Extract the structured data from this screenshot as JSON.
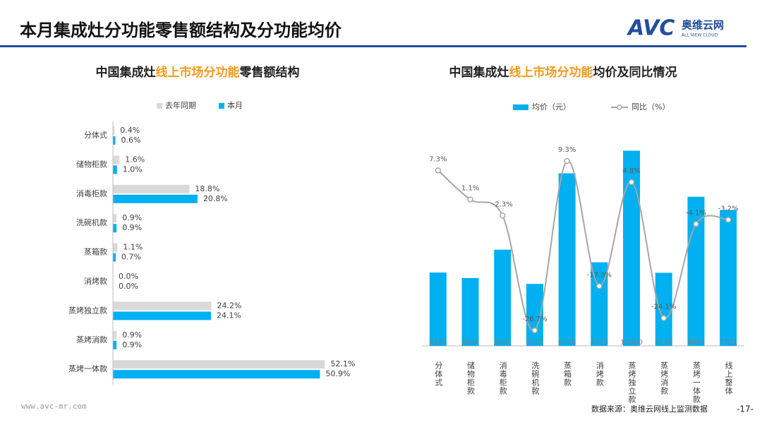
{
  "header": {
    "title": "本月集成灶分功能零售额结构及分功能均价",
    "logo": "AVC",
    "logo_cn": "奥维云网",
    "logo_en": "ALL VIEW CLOUD"
  },
  "footer": {
    "website": "www.avc-mr.com",
    "source": "数据来源：奥维云网线上监测数据",
    "page": "-17-"
  },
  "chart_data": [
    {
      "type": "hbar",
      "title": [
        {
          "text": "中国集成灶",
          "color": "#222222"
        },
        {
          "text": "线上市场分功能",
          "color": "#f39a1e"
        },
        {
          "text": "零售额结构",
          "color": "#222222"
        }
      ],
      "categories": [
        "分体式",
        "储物柜款",
        "消毒柜款",
        "洗碗机款",
        "蒸箱款",
        "消烤款",
        "蒸烤独立款",
        "蒸烤消款",
        "蒸烤一体款"
      ],
      "series": [
        {
          "name": "去年同期",
          "color": "#d9d9d9",
          "values": [
            0.4,
            1.6,
            18.8,
            0.9,
            1.1,
            0.0,
            24.2,
            0.9,
            52.1
          ],
          "value_labels": [
            "0.4%",
            "1.6%",
            "18.8%",
            "0.9%",
            "1.1%",
            "0.0%",
            "24.2%",
            "0.9%",
            "52.1%"
          ]
        },
        {
          "name": "本月",
          "color": "#00b0f0",
          "values": [
            0.6,
            1.0,
            20.8,
            0.9,
            0.7,
            0.0,
            24.1,
            0.9,
            50.9
          ],
          "value_labels": [
            "0.6%",
            "1.0%",
            "20.8%",
            "0.9%",
            "0.7%",
            "0.0%",
            "24.1%",
            "0.9%",
            "50.9%"
          ]
        }
      ],
      "xlim": [
        0,
        60
      ]
    },
    {
      "type": "bar_line",
      "title": [
        {
          "text": "中国集成灶",
          "color": "#222222"
        },
        {
          "text": "线上市场分功能",
          "color": "#f39a1e"
        },
        {
          "text": "均价及同比情况",
          "color": "#222222"
        }
      ],
      "categories": [
        "分体式",
        "储物柜款",
        "消毒柜款",
        "洗碗机款",
        "蒸箱款",
        "消烤款",
        "蒸烤独立款",
        "蒸烤消款",
        "蒸烤一体款",
        "线上整体"
      ],
      "series": [
        {
          "name": "均价（元）",
          "color": "#00b0f0",
          "values": [
            4157,
            3844,
            5451,
            3513,
            9776,
            4733,
            11060,
            4143,
            8450,
            7701
          ]
        },
        {
          "name": "同比（%）",
          "color": "#a6a6a6",
          "axis": "y2",
          "values": [
            7.3,
            1.1,
            -2.3,
            -26.7,
            9.3,
            -17.3,
            4.8,
            -24.1,
            -4.1,
            -3.2
          ],
          "value_labels": [
            "7.3%",
            "1.1%",
            "-2.3%",
            "-26.7%",
            "9.3%",
            "-17.3%",
            "4.8%",
            "-24.1%",
            "-4.1%",
            "-3.2%"
          ]
        }
      ],
      "ylim": [
        0,
        12000
      ],
      "y2lim": [
        -30,
        15
      ]
    }
  ]
}
